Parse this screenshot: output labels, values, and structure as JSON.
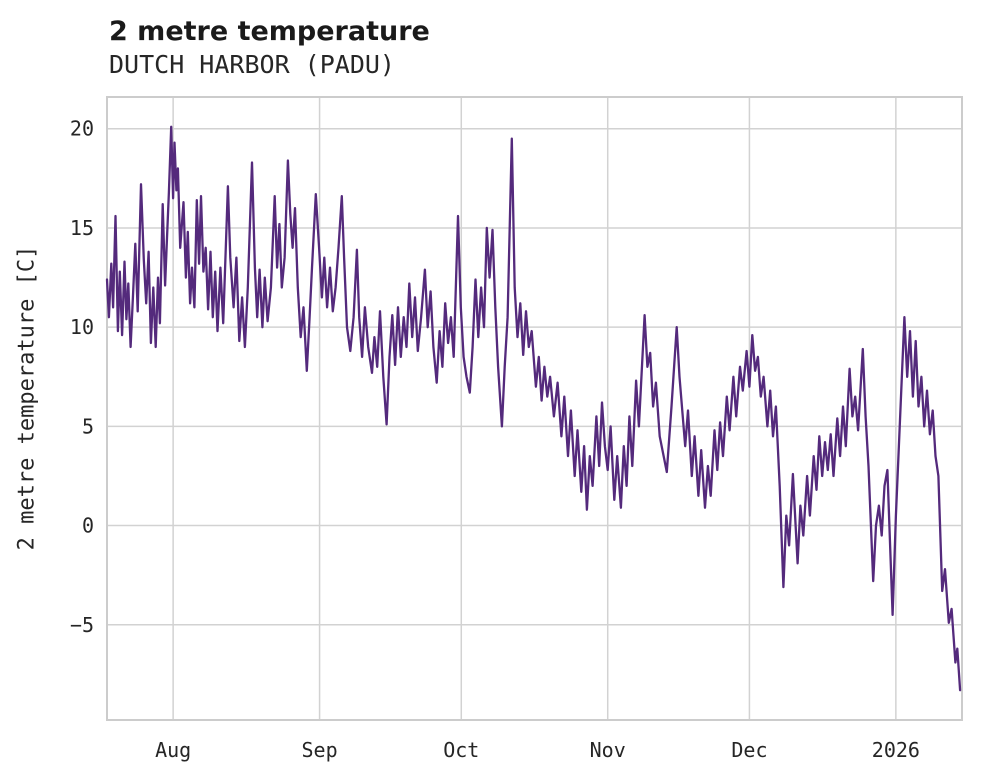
{
  "header": {
    "title": "2 metre temperature",
    "subtitle": "DUTCH HARBOR (PADU)"
  },
  "colors": {
    "line": "#542a7c",
    "grid": "#d2d2d2",
    "axis_border": "#cccccc",
    "text": "#262626",
    "title_text": "#1a1a1a",
    "background": "#ffffff"
  },
  "chart_data": {
    "type": "line",
    "title": "2 metre temperature",
    "subtitle": "DUTCH HARBOR (PADU)",
    "xlabel": "",
    "ylabel": "2 metre temperature [C]",
    "grid": true,
    "legend_position": "none",
    "xlim": [
      0,
      181
    ],
    "ylim": [
      -9.8,
      21.6
    ],
    "x_description": "time axis, day index from start of trace; ticks mark month starts",
    "xticks": [
      {
        "value": 14,
        "label": "Aug"
      },
      {
        "value": 45,
        "label": "Sep"
      },
      {
        "value": 75,
        "label": "Oct"
      },
      {
        "value": 106,
        "label": "Nov"
      },
      {
        "value": 136,
        "label": "Dec"
      },
      {
        "value": 167,
        "label": "2026"
      }
    ],
    "yticks": [
      {
        "value": 20,
        "label": "20"
      },
      {
        "value": 15,
        "label": "15"
      },
      {
        "value": 10,
        "label": "10"
      },
      {
        "value": 5,
        "label": "5"
      },
      {
        "value": 0,
        "label": "0"
      },
      {
        "value": -5,
        "label": "−5"
      }
    ],
    "series": [
      {
        "name": "2 metre temperature",
        "color": "#542a7c",
        "points": [
          [
            0.0,
            12.4
          ],
          [
            0.4,
            10.5
          ],
          [
            0.9,
            13.2
          ],
          [
            1.3,
            11.0
          ],
          [
            1.8,
            15.6
          ],
          [
            2.3,
            9.8
          ],
          [
            2.7,
            12.8
          ],
          [
            3.2,
            9.6
          ],
          [
            3.7,
            13.3
          ],
          [
            4.1,
            10.4
          ],
          [
            4.5,
            12.2
          ],
          [
            5.0,
            9.0
          ],
          [
            5.5,
            11.6
          ],
          [
            6.0,
            14.2
          ],
          [
            6.5,
            10.8
          ],
          [
            7.2,
            17.2
          ],
          [
            7.8,
            13.4
          ],
          [
            8.3,
            11.2
          ],
          [
            8.8,
            13.8
          ],
          [
            9.3,
            9.2
          ],
          [
            9.8,
            12.0
          ],
          [
            10.3,
            9.0
          ],
          [
            10.8,
            12.5
          ],
          [
            11.2,
            10.2
          ],
          [
            11.8,
            16.2
          ],
          [
            12.3,
            12.1
          ],
          [
            12.7,
            14.5
          ],
          [
            13.1,
            16.8
          ],
          [
            13.6,
            20.1
          ],
          [
            14.0,
            16.5
          ],
          [
            14.3,
            19.3
          ],
          [
            14.7,
            16.9
          ],
          [
            15.0,
            18.0
          ],
          [
            15.5,
            14.0
          ],
          [
            16.2,
            16.3
          ],
          [
            16.7,
            12.5
          ],
          [
            17.1,
            14.8
          ],
          [
            17.6,
            11.2
          ],
          [
            18.0,
            13.0
          ],
          [
            18.5,
            11.0
          ],
          [
            19.0,
            16.4
          ],
          [
            19.5,
            13.2
          ],
          [
            19.9,
            16.6
          ],
          [
            20.4,
            12.8
          ],
          [
            20.9,
            14.0
          ],
          [
            21.4,
            10.9
          ],
          [
            21.9,
            13.8
          ],
          [
            22.4,
            10.5
          ],
          [
            22.9,
            12.8
          ],
          [
            23.4,
            9.8
          ],
          [
            24.0,
            13.0
          ],
          [
            24.6,
            10.2
          ],
          [
            25.6,
            17.1
          ],
          [
            26.1,
            13.5
          ],
          [
            26.8,
            11.0
          ],
          [
            27.4,
            13.5
          ],
          [
            28.0,
            9.3
          ],
          [
            28.6,
            11.5
          ],
          [
            29.2,
            9.0
          ],
          [
            29.8,
            12.0
          ],
          [
            30.7,
            18.3
          ],
          [
            31.3,
            13.0
          ],
          [
            31.8,
            10.5
          ],
          [
            32.3,
            12.9
          ],
          [
            32.9,
            10.0
          ],
          [
            33.4,
            12.5
          ],
          [
            34.0,
            10.3
          ],
          [
            34.7,
            12.0
          ],
          [
            35.5,
            16.6
          ],
          [
            36.0,
            13.0
          ],
          [
            36.5,
            15.2
          ],
          [
            37.0,
            12.0
          ],
          [
            37.6,
            13.5
          ],
          [
            38.3,
            18.4
          ],
          [
            38.8,
            15.7
          ],
          [
            39.3,
            14.0
          ],
          [
            39.8,
            16.0
          ],
          [
            40.4,
            12.0
          ],
          [
            41.0,
            9.5
          ],
          [
            41.6,
            11.0
          ],
          [
            42.3,
            7.8
          ],
          [
            42.9,
            10.5
          ],
          [
            43.4,
            13.0
          ],
          [
            44.2,
            16.7
          ],
          [
            44.9,
            14.0
          ],
          [
            45.5,
            11.5
          ],
          [
            46.0,
            13.5
          ],
          [
            46.6,
            11.0
          ],
          [
            47.2,
            13.0
          ],
          [
            47.8,
            10.8
          ],
          [
            48.4,
            12.0
          ],
          [
            49.0,
            14.0
          ],
          [
            49.7,
            16.6
          ],
          [
            50.2,
            13.5
          ],
          [
            50.8,
            10.0
          ],
          [
            51.5,
            8.8
          ],
          [
            52.2,
            10.5
          ],
          [
            52.9,
            13.9
          ],
          [
            53.4,
            10.5
          ],
          [
            54.0,
            8.5
          ],
          [
            54.6,
            11.0
          ],
          [
            55.3,
            9.0
          ],
          [
            56.1,
            7.7
          ],
          [
            56.6,
            9.5
          ],
          [
            57.2,
            8.0
          ],
          [
            57.8,
            10.8
          ],
          [
            58.5,
            7.5
          ],
          [
            59.2,
            5.1
          ],
          [
            59.8,
            8.5
          ],
          [
            60.4,
            10.6
          ],
          [
            61.0,
            8.1
          ],
          [
            61.6,
            11.0
          ],
          [
            62.2,
            8.5
          ],
          [
            62.8,
            10.5
          ],
          [
            63.4,
            9.0
          ],
          [
            64.0,
            12.2
          ],
          [
            64.6,
            9.5
          ],
          [
            65.2,
            11.5
          ],
          [
            65.8,
            8.8
          ],
          [
            66.5,
            10.5
          ],
          [
            67.3,
            12.9
          ],
          [
            67.9,
            10.0
          ],
          [
            68.5,
            11.8
          ],
          [
            69.1,
            9.0
          ],
          [
            69.8,
            7.2
          ],
          [
            70.4,
            9.8
          ],
          [
            71.0,
            8.0
          ],
          [
            71.6,
            11.2
          ],
          [
            72.2,
            9.2
          ],
          [
            72.8,
            10.5
          ],
          [
            73.4,
            8.5
          ],
          [
            74.3,
            15.6
          ],
          [
            74.9,
            11.0
          ],
          [
            75.5,
            8.5
          ],
          [
            76.1,
            7.5
          ],
          [
            76.8,
            6.7
          ],
          [
            77.4,
            9.0
          ],
          [
            78.0,
            12.4
          ],
          [
            78.6,
            9.5
          ],
          [
            79.2,
            12.0
          ],
          [
            79.8,
            10.0
          ],
          [
            80.4,
            15.0
          ],
          [
            81.0,
            12.5
          ],
          [
            81.6,
            14.9
          ],
          [
            82.2,
            11.0
          ],
          [
            82.8,
            8.0
          ],
          [
            83.6,
            5.0
          ],
          [
            84.2,
            8.0
          ],
          [
            84.8,
            10.5
          ],
          [
            85.7,
            19.5
          ],
          [
            86.3,
            12.0
          ],
          [
            86.9,
            9.5
          ],
          [
            87.5,
            11.2
          ],
          [
            88.1,
            8.6
          ],
          [
            88.7,
            10.8
          ],
          [
            89.3,
            9.0
          ],
          [
            89.9,
            9.8
          ],
          [
            90.8,
            7.0
          ],
          [
            91.4,
            8.5
          ],
          [
            92.0,
            6.3
          ],
          [
            92.6,
            8.0
          ],
          [
            93.2,
            6.5
          ],
          [
            93.8,
            7.5
          ],
          [
            94.6,
            5.5
          ],
          [
            95.4,
            7.2
          ],
          [
            96.2,
            4.5
          ],
          [
            96.8,
            6.5
          ],
          [
            97.6,
            3.5
          ],
          [
            98.2,
            5.8
          ],
          [
            99.0,
            2.5
          ],
          [
            99.6,
            4.8
          ],
          [
            100.4,
            1.7
          ],
          [
            101.0,
            4.0
          ],
          [
            101.6,
            0.8
          ],
          [
            102.2,
            3.5
          ],
          [
            102.8,
            2.0
          ],
          [
            103.6,
            5.5
          ],
          [
            104.2,
            3.0
          ],
          [
            104.8,
            6.2
          ],
          [
            105.4,
            4.0
          ],
          [
            106.0,
            2.8
          ],
          [
            106.6,
            5.0
          ],
          [
            107.4,
            1.3
          ],
          [
            108.0,
            3.5
          ],
          [
            108.8,
            0.9
          ],
          [
            109.4,
            4.0
          ],
          [
            110.0,
            2.0
          ],
          [
            110.6,
            5.5
          ],
          [
            111.2,
            3.0
          ],
          [
            112.0,
            7.3
          ],
          [
            112.6,
            5.0
          ],
          [
            113.8,
            10.6
          ],
          [
            114.4,
            8.0
          ],
          [
            115.0,
            8.7
          ],
          [
            115.6,
            6.0
          ],
          [
            116.2,
            7.2
          ],
          [
            117.0,
            4.5
          ],
          [
            118.5,
            2.7
          ],
          [
            119.5,
            6.0
          ],
          [
            120.6,
            10.0
          ],
          [
            121.2,
            7.5
          ],
          [
            122.4,
            4.0
          ],
          [
            123.0,
            5.8
          ],
          [
            123.8,
            2.5
          ],
          [
            124.4,
            4.5
          ],
          [
            125.2,
            1.5
          ],
          [
            125.8,
            3.8
          ],
          [
            126.6,
            0.9
          ],
          [
            127.2,
            3.0
          ],
          [
            127.8,
            1.5
          ],
          [
            128.6,
            4.8
          ],
          [
            129.2,
            2.8
          ],
          [
            129.8,
            5.2
          ],
          [
            130.4,
            3.5
          ],
          [
            131.2,
            6.5
          ],
          [
            131.8,
            4.8
          ],
          [
            132.6,
            7.5
          ],
          [
            133.2,
            5.5
          ],
          [
            134.0,
            8.0
          ],
          [
            134.6,
            6.8
          ],
          [
            135.4,
            8.8
          ],
          [
            136.0,
            7.0
          ],
          [
            136.6,
            9.6
          ],
          [
            137.2,
            7.8
          ],
          [
            137.8,
            8.5
          ],
          [
            138.4,
            6.5
          ],
          [
            139.0,
            7.5
          ],
          [
            139.8,
            5.0
          ],
          [
            140.4,
            6.8
          ],
          [
            141.0,
            4.5
          ],
          [
            141.6,
            6.0
          ],
          [
            142.4,
            2.0
          ],
          [
            143.2,
            -3.1
          ],
          [
            143.8,
            0.5
          ],
          [
            144.4,
            -1.0
          ],
          [
            145.2,
            2.6
          ],
          [
            146.2,
            -1.9
          ],
          [
            146.8,
            1.0
          ],
          [
            147.4,
            -0.5
          ],
          [
            148.2,
            2.5
          ],
          [
            148.8,
            0.5
          ],
          [
            149.6,
            3.5
          ],
          [
            150.2,
            1.8
          ],
          [
            150.8,
            4.5
          ],
          [
            151.4,
            2.5
          ],
          [
            152.0,
            4.2
          ],
          [
            152.6,
            2.8
          ],
          [
            153.2,
            4.6
          ],
          [
            153.8,
            2.5
          ],
          [
            154.6,
            5.4
          ],
          [
            155.2,
            3.5
          ],
          [
            155.8,
            6.0
          ],
          [
            156.4,
            4.0
          ],
          [
            157.2,
            7.9
          ],
          [
            157.8,
            5.5
          ],
          [
            158.4,
            6.5
          ],
          [
            159.0,
            4.8
          ],
          [
            160.0,
            8.9
          ],
          [
            160.6,
            5.5
          ],
          [
            161.2,
            3.0
          ],
          [
            162.2,
            -2.8
          ],
          [
            162.8,
            0.0
          ],
          [
            163.4,
            1.0
          ],
          [
            164.0,
            -0.5
          ],
          [
            164.6,
            2.0
          ],
          [
            165.2,
            2.8
          ],
          [
            166.3,
            -4.5
          ],
          [
            167.0,
            0.5
          ],
          [
            168.8,
            10.5
          ],
          [
            169.4,
            7.5
          ],
          [
            170.0,
            9.8
          ],
          [
            170.6,
            6.5
          ],
          [
            171.2,
            9.3
          ],
          [
            171.8,
            6.0
          ],
          [
            172.4,
            7.5
          ],
          [
            173.0,
            5.0
          ],
          [
            173.6,
            6.8
          ],
          [
            174.2,
            4.6
          ],
          [
            174.8,
            5.8
          ],
          [
            175.4,
            3.5
          ],
          [
            176.0,
            2.5
          ],
          [
            176.8,
            -3.3
          ],
          [
            177.4,
            -2.2
          ],
          [
            178.2,
            -4.9
          ],
          [
            178.8,
            -4.2
          ],
          [
            179.6,
            -6.9
          ],
          [
            180.0,
            -6.2
          ],
          [
            180.6,
            -8.3
          ]
        ]
      }
    ]
  }
}
